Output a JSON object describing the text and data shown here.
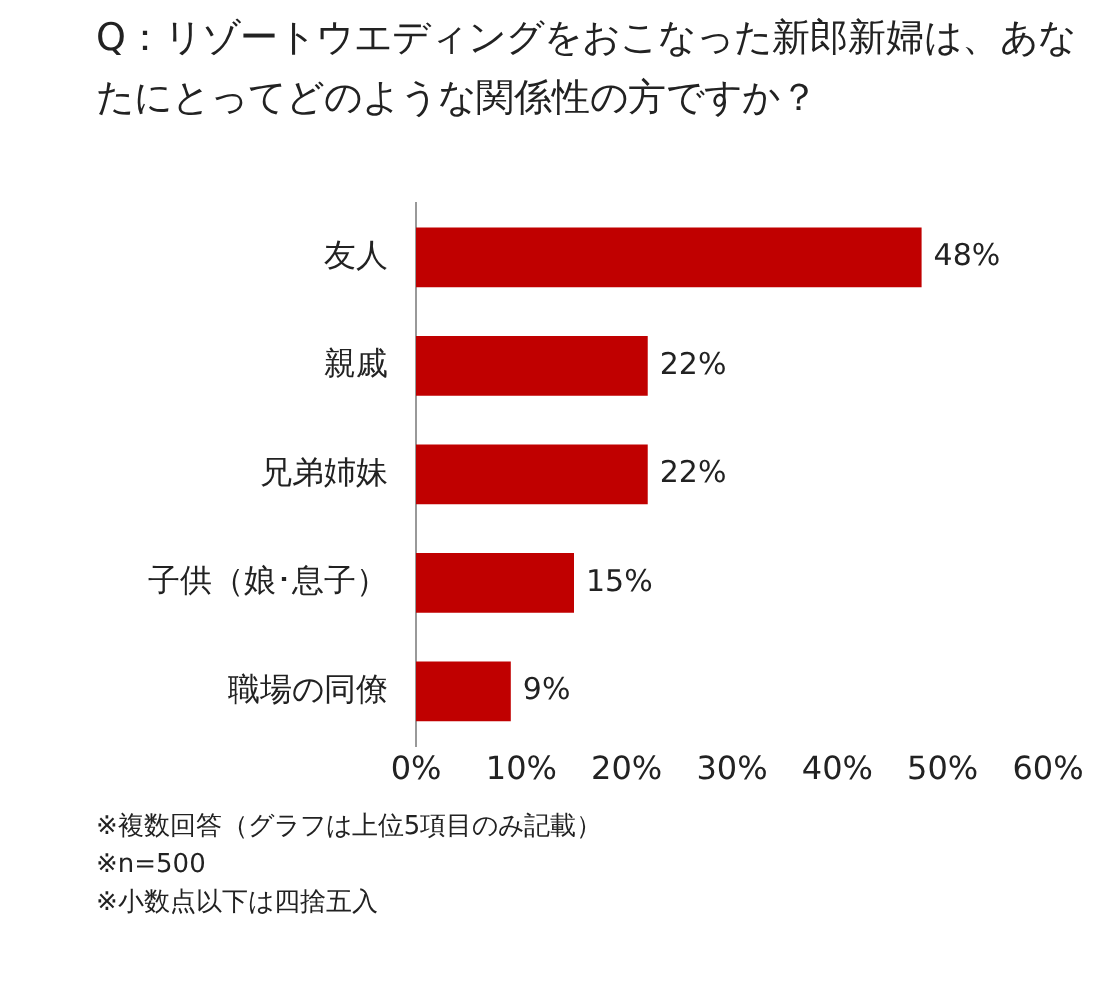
{
  "chart_data": {
    "type": "bar",
    "orientation": "horizontal",
    "title": "Q：リゾートウエディングをおこなった新郎新婦は、あなたにとってどのような関係性の方ですか？",
    "categories": [
      "友人",
      "親戚",
      "兄弟姉妹",
      "子供（娘･息子）",
      "職場の同僚"
    ],
    "values": [
      48,
      22,
      22,
      15,
      9
    ],
    "value_labels": [
      "48%",
      "22%",
      "22%",
      "15%",
      "9%"
    ],
    "color": "#c00000",
    "xlim": [
      0,
      60
    ],
    "xticks": [
      {
        "value": 0,
        "label": "0%"
      },
      {
        "value": 10,
        "label": "10%"
      },
      {
        "value": 20,
        "label": "20%"
      },
      {
        "value": 30,
        "label": "30%"
      },
      {
        "value": 40,
        "label": "40%"
      },
      {
        "value": 50,
        "label": "50%"
      },
      {
        "value": 60,
        "label": "60%"
      }
    ],
    "annotations": [
      "※複数回答（グラフは上位5項目のみ記載）",
      "※n=500",
      "※小数点以下は四捨五入"
    ]
  }
}
